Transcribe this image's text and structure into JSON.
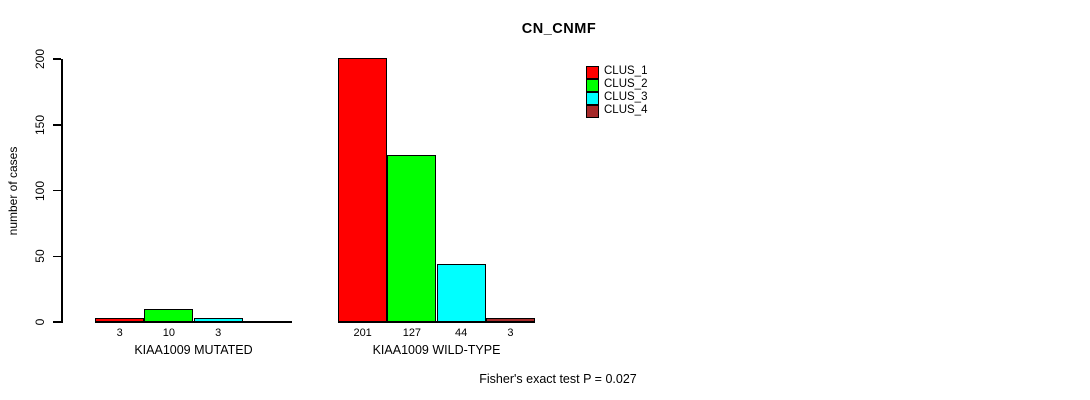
{
  "chart_data": {
    "type": "bar",
    "title": "CN_CNMF",
    "ylabel": "number of cases",
    "xlabel": "",
    "ylim": [
      0,
      200
    ],
    "yticks": [
      0,
      50,
      100,
      150,
      200
    ],
    "grid": false,
    "legend_position": "top-right",
    "categories": [
      "KIAA1009 MUTATED",
      "KIAA1009 WILD-TYPE"
    ],
    "series": [
      {
        "name": "CLUS_1",
        "color": "#ff0000",
        "values": [
          3,
          201
        ]
      },
      {
        "name": "CLUS_2",
        "color": "#00ff00",
        "values": [
          10,
          127
        ]
      },
      {
        "name": "CLUS_3",
        "color": "#00ffff",
        "values": [
          3,
          44
        ]
      },
      {
        "name": "CLUS_4",
        "color": "#a52a2a",
        "values": [
          0,
          3
        ]
      }
    ],
    "bar_value_labels": [
      [
        "3",
        "10",
        "3",
        ""
      ],
      [
        "201",
        "127",
        "44",
        "3"
      ]
    ],
    "annotation": "Fisher's exact test P = 0.027"
  },
  "colors": {
    "background": "#ffffff",
    "axis": "#000000",
    "text": "#000000"
  }
}
